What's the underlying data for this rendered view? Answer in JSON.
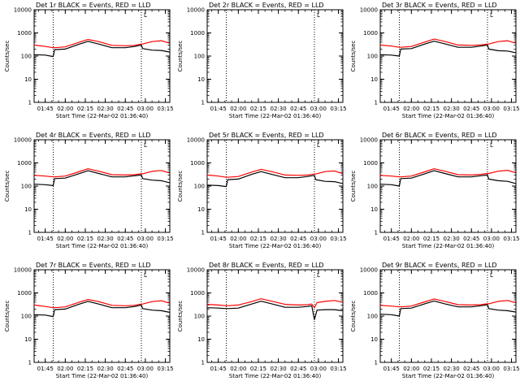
{
  "chart_data": [
    {
      "type": "line",
      "title": "Det 1r BLACK = Events, RED = LLD",
      "xlabel": "Start Time (22-Mar-02 01:36:40)",
      "ylabel": "Counts/sec",
      "yscale": "log",
      "ylim": [
        1,
        10000
      ],
      "xlim": [
        "01:36:40",
        "03:18:20"
      ],
      "xticks": [
        "01:45",
        "02:00",
        "02:15",
        "02:30",
        "02:45",
        "03:00",
        "03:15"
      ],
      "yticks": [
        "1",
        "10",
        "100",
        "1000",
        "10000"
      ],
      "vlines": [
        "01:51",
        "02:57"
      ],
      "series": [
        {
          "color": "#000000",
          "label": "Events",
          "x": [
            "01:36:40",
            "01:45",
            "01:51",
            "01:52",
            "02:00",
            "02:10",
            "02:17",
            "02:25",
            "02:35",
            "02:45",
            "02:52",
            "02:57",
            "02:58",
            "03:05",
            "03:12",
            "03:18"
          ],
          "values": [
            115,
            110,
            95,
            190,
            200,
            320,
            430,
            330,
            230,
            230,
            260,
            300,
            210,
            180,
            175,
            150
          ]
        },
        {
          "color": "#ff0000",
          "label": "LLD",
          "x": [
            "01:36:40",
            "01:45",
            "01:51",
            "01:52",
            "02:00",
            "02:10",
            "02:17",
            "02:25",
            "02:35",
            "02:45",
            "02:52",
            "02:57",
            "02:58",
            "03:05",
            "03:12",
            "03:18"
          ],
          "values": [
            300,
            260,
            230,
            230,
            250,
            390,
            520,
            420,
            290,
            280,
            290,
            330,
            330,
            420,
            460,
            360
          ]
        }
      ],
      "annotation": "L"
    },
    {
      "type": "line",
      "title": "Det 2r BLACK = Events, RED = LLD",
      "xlabel": "Start Time (22-Mar-02 01:36:40)",
      "ylabel": "Counts/sec",
      "yscale": "log",
      "ylim": [
        1,
        10000
      ],
      "xlim": [
        "01:36:40",
        "03:18:20"
      ],
      "xticks": [
        "01:45",
        "02:00",
        "02:15",
        "02:30",
        "02:45",
        "03:00",
        "03:15"
      ],
      "yticks": [
        "1",
        "10",
        "100",
        "1000",
        "10000"
      ],
      "vlines": [
        "01:51",
        "02:57"
      ],
      "series": [],
      "annotation": "L"
    },
    {
      "type": "line",
      "title": "Det 3r BLACK = Events, RED = LLD",
      "xlabel": "Start Time (22-Mar-02 01:36:40)",
      "ylabel": "Counts/sec",
      "yscale": "log",
      "ylim": [
        1,
        10000
      ],
      "xlim": [
        "01:36:40",
        "03:18:20"
      ],
      "xticks": [
        "01:45",
        "02:00",
        "02:15",
        "02:30",
        "02:45",
        "03:00",
        "03:15"
      ],
      "yticks": [
        "1",
        "10",
        "100",
        "1000",
        "10000"
      ],
      "vlines": [
        "01:51",
        "02:57"
      ],
      "series": [
        {
          "color": "#000000",
          "label": "Events",
          "x": [
            "01:36:40",
            "01:45",
            "01:51",
            "01:52",
            "02:00",
            "02:10",
            "02:17",
            "02:25",
            "02:35",
            "02:45",
            "02:52",
            "02:57",
            "02:58",
            "03:05",
            "03:12",
            "03:18"
          ],
          "values": [
            115,
            110,
            100,
            200,
            210,
            330,
            440,
            340,
            240,
            240,
            270,
            300,
            200,
            170,
            165,
            140
          ]
        },
        {
          "color": "#ff0000",
          "label": "LLD",
          "x": [
            "01:36:40",
            "01:45",
            "01:51",
            "01:52",
            "02:00",
            "02:10",
            "02:17",
            "02:25",
            "02:35",
            "02:45",
            "02:52",
            "02:57",
            "02:58",
            "03:05",
            "03:12",
            "03:18"
          ],
          "values": [
            300,
            270,
            240,
            240,
            260,
            400,
            540,
            430,
            300,
            290,
            300,
            330,
            330,
            420,
            460,
            360
          ]
        }
      ],
      "annotation": "L"
    },
    {
      "type": "line",
      "title": "Det 4r BLACK = Events, RED = LLD",
      "xlabel": "Start Time (22-Mar-02 01:36:40)",
      "ylabel": "Counts/sec",
      "yscale": "log",
      "ylim": [
        1,
        10000
      ],
      "xlim": [
        "01:36:40",
        "03:18:20"
      ],
      "xticks": [
        "01:45",
        "02:00",
        "02:15",
        "02:30",
        "02:45",
        "03:00",
        "03:15"
      ],
      "yticks": [
        "1",
        "10",
        "100",
        "1000",
        "10000"
      ],
      "vlines": [
        "01:51",
        "02:57"
      ],
      "series": [
        {
          "color": "#000000",
          "label": "Events",
          "x": [
            "01:36:40",
            "01:45",
            "01:51",
            "01:52",
            "02:00",
            "02:10",
            "02:17",
            "02:25",
            "02:35",
            "02:45",
            "02:52",
            "02:57",
            "02:58",
            "03:05",
            "03:12",
            "03:18"
          ],
          "values": [
            120,
            115,
            105,
            210,
            220,
            340,
            460,
            350,
            250,
            250,
            280,
            300,
            210,
            180,
            170,
            140
          ]
        },
        {
          "color": "#ff0000",
          "label": "LLD",
          "x": [
            "01:36:40",
            "01:45",
            "01:51",
            "01:52",
            "02:00",
            "02:10",
            "02:17",
            "02:25",
            "02:35",
            "02:45",
            "02:52",
            "02:57",
            "02:58",
            "03:05",
            "03:12",
            "03:18"
          ],
          "values": [
            290,
            270,
            250,
            250,
            270,
            410,
            560,
            440,
            310,
            300,
            310,
            340,
            340,
            430,
            470,
            370
          ]
        }
      ],
      "annotation": "L"
    },
    {
      "type": "line",
      "title": "Det 5r BLACK = Events, RED = LLD",
      "xlabel": "Start Time (22-Mar-02 01:36:40)",
      "ylabel": "Counts/sec",
      "yscale": "log",
      "ylim": [
        1,
        10000
      ],
      "xlim": [
        "01:36:40",
        "03:18:20"
      ],
      "xticks": [
        "01:45",
        "02:00",
        "02:15",
        "02:30",
        "02:45",
        "03:00",
        "03:15"
      ],
      "yticks": [
        "1",
        "10",
        "100",
        "1000",
        "10000"
      ],
      "vlines": [
        "01:51",
        "02:57"
      ],
      "series": [
        {
          "color": "#000000",
          "label": "Events",
          "x": [
            "01:36:40",
            "01:45",
            "01:51",
            "01:52",
            "02:00",
            "02:10",
            "02:17",
            "02:25",
            "02:35",
            "02:45",
            "02:52",
            "02:57",
            "02:58",
            "03:05",
            "03:12",
            "03:18"
          ],
          "values": [
            110,
            105,
            95,
            190,
            200,
            320,
            420,
            320,
            230,
            230,
            260,
            290,
            190,
            160,
            155,
            130
          ]
        },
        {
          "color": "#ff0000",
          "label": "LLD",
          "x": [
            "01:36:40",
            "01:45",
            "01:51",
            "01:52",
            "02:00",
            "02:10",
            "02:17",
            "02:25",
            "02:35",
            "02:45",
            "02:52",
            "02:57",
            "02:58",
            "03:05",
            "03:12",
            "03:18"
          ],
          "values": [
            300,
            270,
            240,
            240,
            260,
            400,
            530,
            420,
            300,
            290,
            300,
            330,
            330,
            420,
            450,
            350
          ]
        }
      ],
      "annotation": "L"
    },
    {
      "type": "line",
      "title": "Det 6r BLACK = Events, RED = LLD",
      "xlabel": "Start Time (22-Mar-02 01:36:40)",
      "ylabel": "Counts/sec",
      "yscale": "log",
      "ylim": [
        1,
        10000
      ],
      "xlim": [
        "01:36:40",
        "03:18:20"
      ],
      "xticks": [
        "01:45",
        "02:00",
        "02:15",
        "02:30",
        "02:45",
        "03:00",
        "03:15"
      ],
      "yticks": [
        "1",
        "10",
        "100",
        "1000",
        "10000"
      ],
      "vlines": [
        "01:51",
        "02:57"
      ],
      "series": [
        {
          "color": "#000000",
          "label": "Events",
          "x": [
            "01:36:40",
            "01:45",
            "01:51",
            "01:52",
            "02:00",
            "02:10",
            "02:17",
            "02:25",
            "02:35",
            "02:45",
            "02:52",
            "02:57",
            "02:58",
            "03:05",
            "03:12",
            "03:18"
          ],
          "values": [
            120,
            115,
            100,
            210,
            220,
            340,
            460,
            350,
            250,
            250,
            280,
            300,
            200,
            170,
            160,
            130
          ]
        },
        {
          "color": "#ff0000",
          "label": "LLD",
          "x": [
            "01:36:40",
            "01:45",
            "01:51",
            "01:52",
            "02:00",
            "02:10",
            "02:17",
            "02:25",
            "02:35",
            "02:45",
            "02:52",
            "02:57",
            "02:58",
            "03:05",
            "03:12",
            "03:18"
          ],
          "values": [
            290,
            270,
            250,
            250,
            270,
            410,
            560,
            440,
            310,
            300,
            320,
            350,
            350,
            440,
            480,
            380
          ]
        }
      ],
      "annotation": "L"
    },
    {
      "type": "line",
      "title": "Det 7r BLACK = Events, RED = LLD",
      "xlabel": "Start Time (22-Mar-02 01:36:40)",
      "ylabel": "Counts/sec",
      "yscale": "log",
      "ylim": [
        1,
        10000
      ],
      "xlim": [
        "01:36:40",
        "03:18:20"
      ],
      "xticks": [
        "01:45",
        "02:00",
        "02:15",
        "02:30",
        "02:45",
        "03:00",
        "03:15"
      ],
      "yticks": [
        "1",
        "10",
        "100",
        "1000",
        "10000"
      ],
      "vlines": [
        "01:51",
        "02:57"
      ],
      "series": [
        {
          "color": "#000000",
          "label": "Events",
          "x": [
            "01:36:40",
            "01:45",
            "01:51",
            "01:52",
            "02:00",
            "02:10",
            "02:17",
            "02:25",
            "02:35",
            "02:45",
            "02:52",
            "02:57",
            "02:58",
            "03:05",
            "03:12",
            "03:18"
          ],
          "values": [
            115,
            110,
            95,
            190,
            200,
            320,
            430,
            330,
            230,
            230,
            260,
            300,
            210,
            180,
            170,
            145
          ]
        },
        {
          "color": "#ff0000",
          "label": "LLD",
          "x": [
            "01:36:40",
            "01:45",
            "01:51",
            "01:52",
            "02:00",
            "02:10",
            "02:17",
            "02:25",
            "02:35",
            "02:45",
            "02:52",
            "02:57",
            "02:58",
            "03:05",
            "03:12",
            "03:18"
          ],
          "values": [
            300,
            260,
            230,
            230,
            250,
            390,
            520,
            420,
            290,
            280,
            290,
            330,
            330,
            420,
            460,
            360
          ]
        }
      ],
      "annotation": "L"
    },
    {
      "type": "line",
      "title": "Det 8r BLACK = Events, RED = LLD",
      "xlabel": "Start Time (22-Mar-02 01:36:40)",
      "ylabel": "Counts/sec",
      "yscale": "log",
      "ylim": [
        1,
        10000
      ],
      "xlim": [
        "01:36:40",
        "03:18:20"
      ],
      "xticks": [
        "01:45",
        "02:00",
        "02:15",
        "02:30",
        "02:45",
        "03:00",
        "03:15"
      ],
      "yticks": [
        "1",
        "10",
        "100",
        "1000",
        "10000"
      ],
      "vlines": [
        "01:51",
        "02:57"
      ],
      "series": [
        {
          "color": "#000000",
          "label": "Events",
          "x": [
            "01:36:40",
            "01:45",
            "01:51",
            "01:52",
            "02:00",
            "02:10",
            "02:17",
            "02:25",
            "02:35",
            "02:45",
            "02:52",
            "02:55",
            "02:57",
            "02:59",
            "03:05",
            "03:12",
            "03:18"
          ],
          "values": [
            230,
            220,
            210,
            210,
            220,
            330,
            440,
            340,
            240,
            240,
            260,
            280,
            70,
            180,
            190,
            190,
            170
          ]
        },
        {
          "color": "#ff0000",
          "label": "LLD",
          "x": [
            "01:36:40",
            "01:45",
            "01:51",
            "01:52",
            "02:00",
            "02:10",
            "02:17",
            "02:25",
            "02:35",
            "02:45",
            "02:52",
            "02:55",
            "02:57",
            "02:59",
            "03:05",
            "03:12",
            "03:18"
          ],
          "values": [
            320,
            300,
            280,
            280,
            300,
            420,
            560,
            440,
            320,
            300,
            310,
            330,
            230,
            380,
            430,
            470,
            400
          ]
        }
      ],
      "annotation": "L"
    },
    {
      "type": "line",
      "title": "Det 9r BLACK = Events, RED = LLD",
      "xlabel": "Start Time (22-Mar-02 01:36:40)",
      "ylabel": "Counts/sec",
      "yscale": "log",
      "ylim": [
        1,
        10000
      ],
      "xlim": [
        "01:36:40",
        "03:18:20"
      ],
      "xticks": [
        "01:45",
        "02:00",
        "02:15",
        "02:30",
        "02:45",
        "03:00",
        "03:15"
      ],
      "yticks": [
        "1",
        "10",
        "100",
        "1000",
        "10000"
      ],
      "vlines": [
        "01:51",
        "02:57"
      ],
      "series": [
        {
          "color": "#000000",
          "label": "Events",
          "x": [
            "01:36:40",
            "01:45",
            "01:51",
            "01:52",
            "02:00",
            "02:10",
            "02:17",
            "02:25",
            "02:35",
            "02:45",
            "02:52",
            "02:57",
            "02:58",
            "03:05",
            "03:12",
            "03:18"
          ],
          "values": [
            120,
            115,
            100,
            210,
            220,
            340,
            450,
            340,
            250,
            250,
            280,
            310,
            210,
            180,
            170,
            150
          ]
        },
        {
          "color": "#ff0000",
          "label": "LLD",
          "x": [
            "01:36:40",
            "01:45",
            "01:51",
            "01:52",
            "02:00",
            "02:10",
            "02:17",
            "02:25",
            "02:35",
            "02:45",
            "02:52",
            "02:57",
            "02:58",
            "03:05",
            "03:12",
            "03:18"
          ],
          "values": [
            290,
            270,
            250,
            250,
            270,
            410,
            550,
            430,
            310,
            300,
            310,
            340,
            340,
            430,
            470,
            380
          ]
        }
      ],
      "annotation": "L"
    }
  ]
}
